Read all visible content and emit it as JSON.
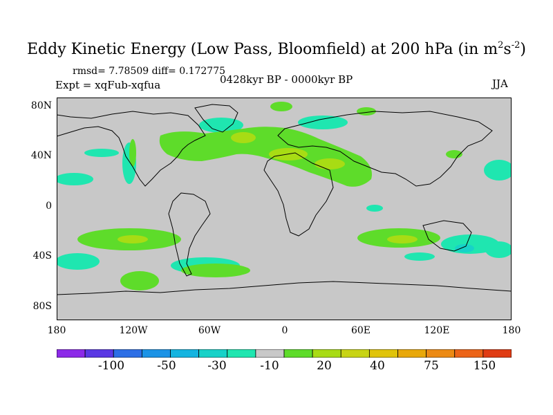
{
  "title": {
    "main": "Eddy Kinetic Energy (Low Pass, Bloomfield) at 200 hPa (in m",
    "sup1": "2",
    "mid": "s",
    "sup2": "-2",
    "close": ")"
  },
  "stats": "rmsd= 7.78509 diff= 0.172775",
  "experiment": "Expt = xqFub-xqfua",
  "period": "0428kyr BP - 0000kyr BP",
  "season": "JJA",
  "axes": {
    "lat_ticks": [
      "80N",
      "40N",
      "0",
      "40S",
      "80S"
    ],
    "lon_ticks": [
      "180",
      "120W",
      "60W",
      "0",
      "60E",
      "120E",
      "180"
    ]
  },
  "colorbar": {
    "colors": [
      "#8c2ae8",
      "#5a38e4",
      "#2d6fe6",
      "#1b93e6",
      "#14b4e0",
      "#17d2c8",
      "#1fe6b0",
      "#c8c8c8",
      "#5edc2a",
      "#a8dc14",
      "#c8d414",
      "#e0c40a",
      "#e8a80a",
      "#ec8a14",
      "#ec6418",
      "#e03c14"
    ],
    "labels": [
      "-100",
      "-50",
      "-30",
      "-10",
      "20",
      "40",
      "75",
      "150"
    ]
  },
  "legend_colors": {
    "land_sea_background": "#c8c8c8",
    "positive_low": "#5edc2a",
    "positive_mid": "#a8dc14",
    "negative_low": "#1fe6b0",
    "negative_mid": "#17d2c8"
  }
}
